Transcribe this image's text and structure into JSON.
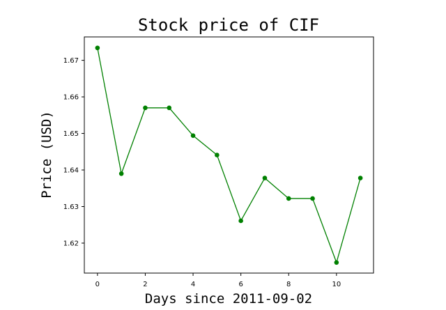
{
  "chart_data": {
    "type": "line",
    "title": "Stock price of CIF",
    "xlabel": "Days since 2011-09-02",
    "ylabel": "Price (USD)",
    "x": [
      0,
      1,
      2,
      3,
      4,
      5,
      6,
      7,
      8,
      9,
      10,
      11
    ],
    "series": [
      {
        "values": [
          1.6734,
          1.639,
          1.657,
          1.657,
          1.6494,
          1.6441,
          1.6261,
          1.6378,
          1.6322,
          1.6322,
          1.6147,
          1.6378
        ],
        "color": "#008000",
        "marker": "circle"
      }
    ],
    "xlim": [
      -0.55,
      11.55
    ],
    "ylim": [
      1.6118,
      1.6764
    ],
    "xticks": [
      0,
      2,
      4,
      6,
      8,
      10
    ],
    "yticks": [
      1.62,
      1.63,
      1.64,
      1.65,
      1.66,
      1.67
    ],
    "xtick_labels": [
      "0",
      "2",
      "4",
      "6",
      "8",
      "10"
    ],
    "ytick_labels": [
      "1.62",
      "1.63",
      "1.64",
      "1.65",
      "1.66",
      "1.67"
    ],
    "grid": false,
    "legend": "none"
  }
}
